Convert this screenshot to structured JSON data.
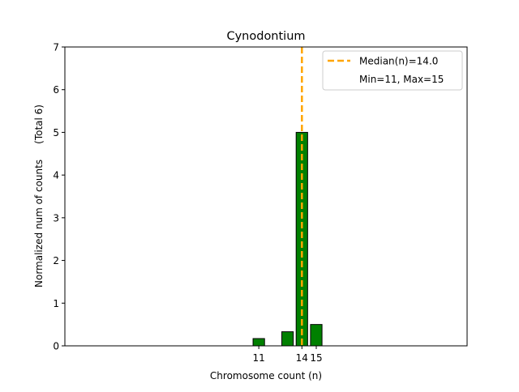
{
  "chart_data": {
    "type": "bar",
    "title": "Cynodontium",
    "xlabel": "Chromosome count (n)",
    "ylabel": "Normalized num of counts     (Total 6)",
    "xlim": [
      -2.5,
      25.5
    ],
    "ylim": [
      0,
      7
    ],
    "yticks": [
      0,
      1,
      2,
      3,
      4,
      5,
      6,
      7
    ],
    "xticks": [
      11,
      14,
      15
    ],
    "bars": [
      {
        "x": 11,
        "value": 0.17
      },
      {
        "x": 13,
        "value": 0.33
      },
      {
        "x": 14,
        "value": 5
      },
      {
        "x": 15,
        "value": 0.5
      }
    ],
    "bar_color": "#008000",
    "bar_edge_color": "#000000",
    "median_line": {
      "x": 14.0,
      "color": "#FFA500",
      "label": "Median(n)=14.0"
    },
    "legend": {
      "placement": "top-right",
      "entries": [
        "Median(n)=14.0",
        "Min=11, Max=15"
      ]
    },
    "grid": false
  }
}
